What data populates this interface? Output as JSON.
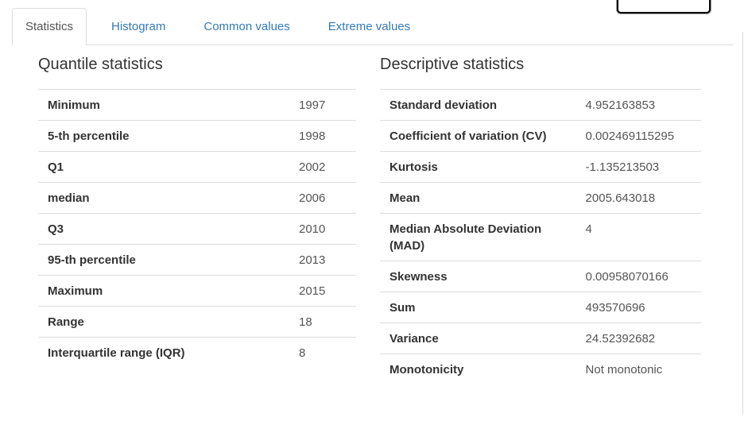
{
  "tabs": [
    {
      "label": "Statistics",
      "active": true
    },
    {
      "label": "Histogram",
      "active": false
    },
    {
      "label": "Common values",
      "active": false
    },
    {
      "label": "Extreme values",
      "active": false
    }
  ],
  "quantile_statistics": {
    "title": "Quantile statistics",
    "rows": [
      {
        "label": "Minimum",
        "value": "1997"
      },
      {
        "label": "5-th percentile",
        "value": "1998"
      },
      {
        "label": "Q1",
        "value": "2002"
      },
      {
        "label": "median",
        "value": "2006"
      },
      {
        "label": "Q3",
        "value": "2010"
      },
      {
        "label": "95-th percentile",
        "value": "2013"
      },
      {
        "label": "Maximum",
        "value": "2015"
      },
      {
        "label": "Range",
        "value": "18"
      },
      {
        "label": "Interquartile range (IQR)",
        "value": "8"
      }
    ]
  },
  "descriptive_statistics": {
    "title": "Descriptive statistics",
    "rows": [
      {
        "label": "Standard deviation",
        "value": "4.952163853"
      },
      {
        "label": "Coefficient of variation (CV)",
        "value": "0.002469115295"
      },
      {
        "label": "Kurtosis",
        "value": "-1.135213503"
      },
      {
        "label": "Mean",
        "value": "2005.643018"
      },
      {
        "label": "Median Absolute Deviation (MAD)",
        "value": "4"
      },
      {
        "label": "Skewness",
        "value": "0.00958070166"
      },
      {
        "label": "Sum",
        "value": "493570696"
      },
      {
        "label": "Variance",
        "value": "24.52392682"
      },
      {
        "label": "Monotonicity",
        "value": "Not monotonic"
      }
    ]
  },
  "colors": {
    "accent_link": "#337ab7",
    "active_tab_text": "#555555",
    "border": "#dddddd",
    "label_text": "#333333",
    "value_text": "#555555"
  }
}
